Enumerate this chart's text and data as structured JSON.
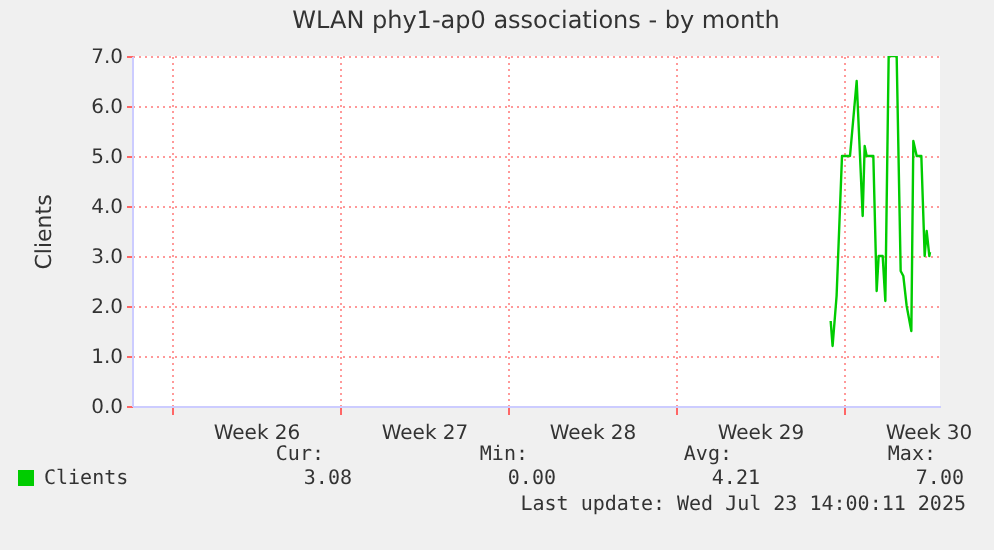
{
  "chart_data": {
    "type": "line",
    "title": "WLAN phy1-ap0 associations - by month",
    "ylabel": "Clients",
    "xlim": [
      "2025-06-20T08:00",
      "2025-07-24T00:00"
    ],
    "xticks": [
      {
        "value": "2025-06-22T00:00",
        "label": null
      },
      {
        "value": "2025-06-25T12:00",
        "label": "Week 26"
      },
      {
        "value": "2025-06-29T00:00",
        "label": null
      },
      {
        "value": "2025-07-02T12:00",
        "label": "Week 27"
      },
      {
        "value": "2025-07-06T00:00",
        "label": null
      },
      {
        "value": "2025-07-09T12:00",
        "label": "Week 28"
      },
      {
        "value": "2025-07-13T00:00",
        "label": null
      },
      {
        "value": "2025-07-16T12:00",
        "label": "Week 29"
      },
      {
        "value": "2025-07-20T00:00",
        "label": null
      },
      {
        "value": "2025-07-23T12:00",
        "label": "Week 30"
      }
    ],
    "ylim": [
      0,
      7
    ],
    "yticks": [
      {
        "value": 0,
        "label": "0.0"
      },
      {
        "value": 1,
        "label": "1.0"
      },
      {
        "value": 2,
        "label": "2.0"
      },
      {
        "value": 3,
        "label": "3.0"
      },
      {
        "value": 4,
        "label": "4.0"
      },
      {
        "value": 5,
        "label": "5.0"
      },
      {
        "value": 6,
        "label": "6.0"
      },
      {
        "value": 7,
        "label": "7.0"
      }
    ],
    "x": [
      "2025-07-19T10:40",
      "2025-07-19T12:35",
      "2025-07-19T16:35",
      "2025-07-19T22:00",
      "2025-07-20T06:00",
      "2025-07-20T12:40",
      "2025-07-20T18:40",
      "2025-07-20T20:40",
      "2025-07-20T22:40",
      "2025-07-21T05:20",
      "2025-07-21T08:40",
      "2025-07-21T10:40",
      "2025-07-21T14:40",
      "2025-07-21T17:20",
      "2025-07-21T20:40",
      "2025-07-22T04:40",
      "2025-07-22T08:40",
      "2025-07-22T11:20",
      "2025-07-22T14:40",
      "2025-07-22T19:20",
      "2025-07-22T21:20",
      "2025-07-23T00:40",
      "2025-07-23T05:20",
      "2025-07-23T08:40",
      "2025-07-23T10:40",
      "2025-07-23T13:20",
      "2025-07-23T14:00"
    ],
    "series": [
      {
        "name": "Clients",
        "color": "#00cc00",
        "values": [
          1.7,
          1.2,
          2.2,
          5.0,
          5.0,
          6.5,
          3.8,
          5.2,
          5.0,
          5.0,
          2.3,
          3.0,
          3.0,
          2.1,
          7.0,
          7.0,
          2.7,
          2.6,
          2.0,
          1.5,
          5.3,
          5.0,
          5.0,
          3.0,
          3.5,
          3.0,
          3.08
        ]
      }
    ],
    "grid": true,
    "legend": "bottom",
    "annotations": [
      "Cur:",
      "Min:",
      "Avg:",
      "Max:",
      "3.08",
      "0.00",
      "4.21",
      "7.00",
      "Last update: Wed Jul 23 14:00:11 2025"
    ]
  }
}
